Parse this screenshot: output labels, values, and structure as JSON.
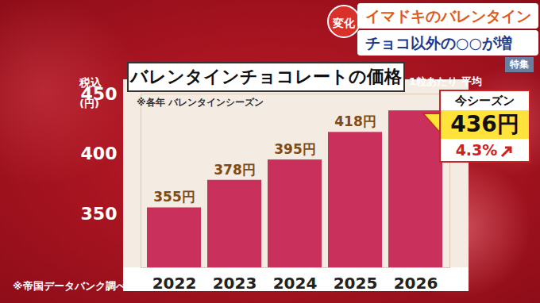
{
  "overlay": {
    "badge": "変化",
    "line1": "イマドキのバレンタイン",
    "line2": "チョコ以外の○○が増",
    "tag": "特集"
  },
  "chart_data": {
    "type": "bar",
    "title": "バレンタインチョコレートの価格",
    "subtitle": "1粒あたり 平均",
    "note": "※各年 バレンタインシーズン",
    "ylabel": "税込",
    "yunit": "(円)",
    "source": "※帝国データバンク調べ",
    "categories": [
      "2022",
      "2023",
      "2024",
      "2025",
      "2026"
    ],
    "values": [
      355,
      378,
      395,
      418,
      436
    ],
    "value_labels": [
      "355円",
      "378円",
      "395円",
      "418円",
      null
    ],
    "data_labels": true,
    "color": "#c9305c",
    "ylim": [
      305,
      450
    ],
    "yticks": [
      350,
      400,
      450
    ],
    "grid": false,
    "callout": {
      "heading": "今シーズン",
      "value": 436,
      "label": "436円",
      "change": 4.3,
      "change_label": "4.3%"
    }
  }
}
